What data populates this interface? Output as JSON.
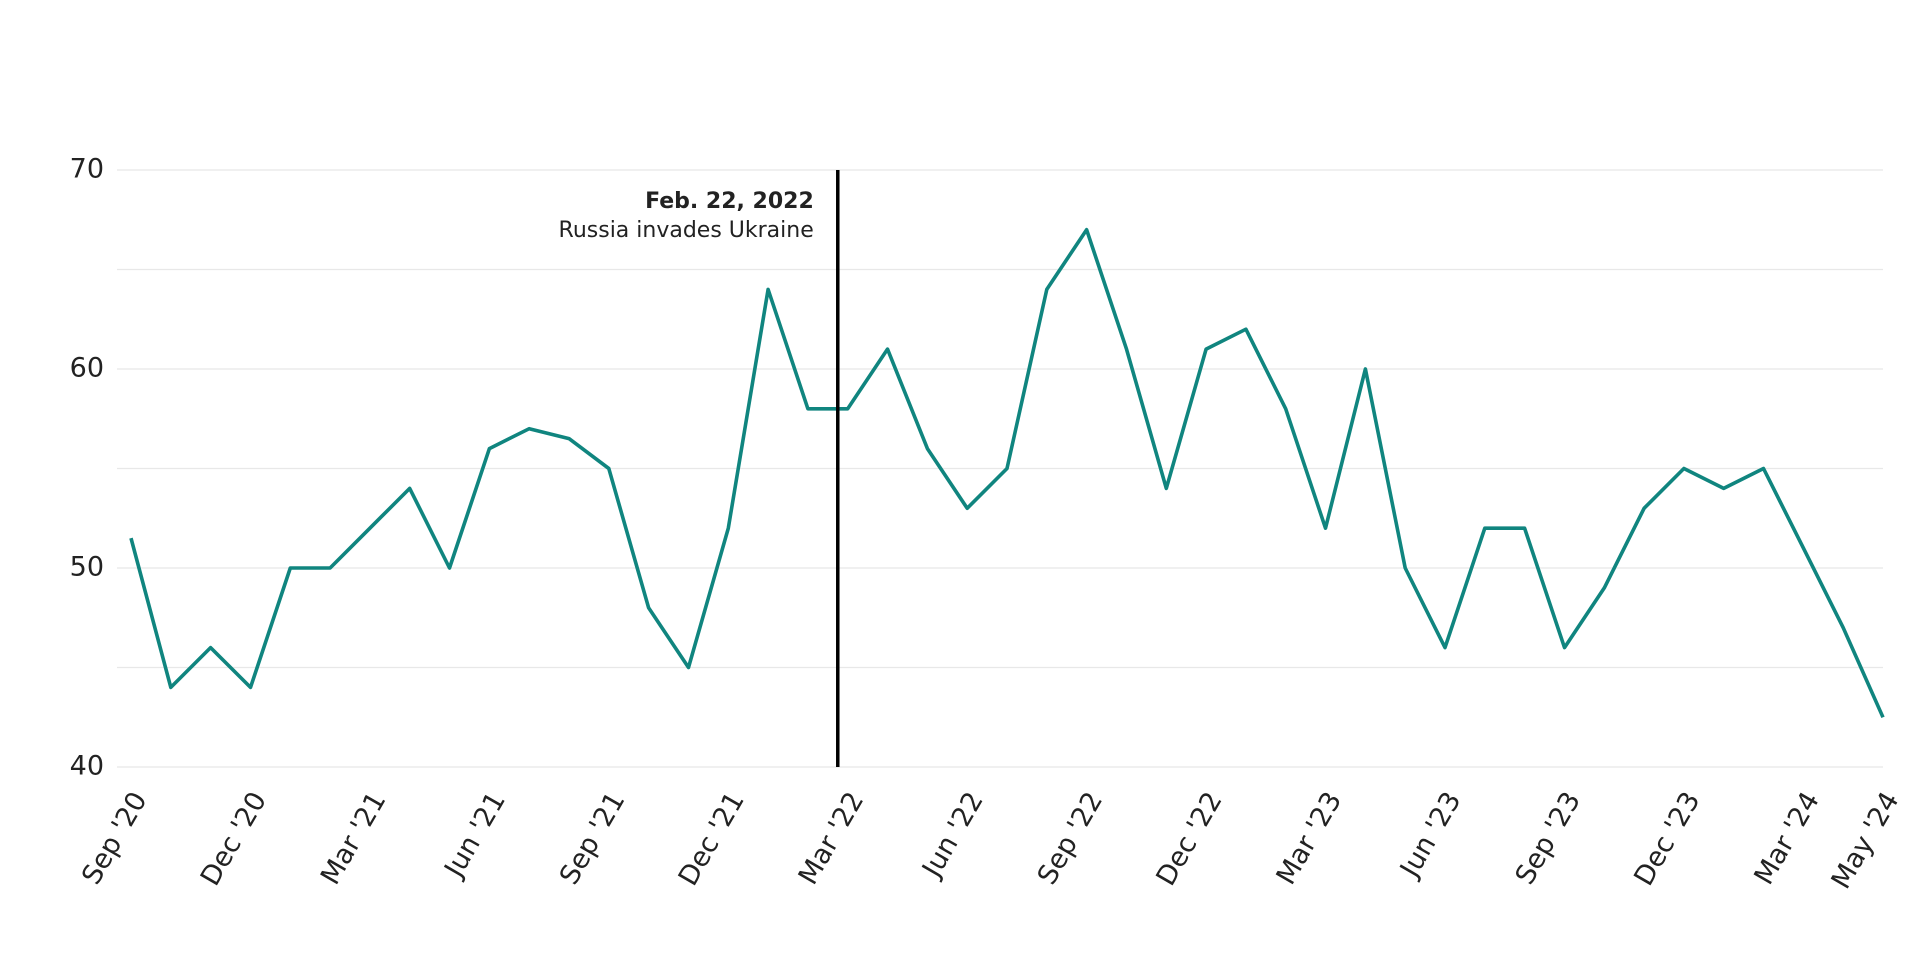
{
  "chart_data": {
    "type": "line",
    "x": [
      "2020-09",
      "2020-10",
      "2020-11",
      "2020-12",
      "2021-01",
      "2021-02",
      "2021-03",
      "2021-04",
      "2021-05",
      "2021-06",
      "2021-07",
      "2021-08",
      "2021-09",
      "2021-10",
      "2021-11",
      "2021-12",
      "2022-01",
      "2022-02",
      "2022-03",
      "2022-04",
      "2022-05",
      "2022-06",
      "2022-07",
      "2022-08",
      "2022-09",
      "2022-10",
      "2022-11",
      "2022-12",
      "2023-01",
      "2023-02",
      "2023-03",
      "2023-04",
      "2023-05",
      "2023-06",
      "2023-07",
      "2023-08",
      "2023-09",
      "2023-10",
      "2023-11",
      "2023-12",
      "2024-01",
      "2024-02",
      "2024-03",
      "2024-04",
      "2024-05"
    ],
    "series": [
      {
        "color": "#10857f",
        "values": [
          51.5,
          44,
          46,
          44,
          50,
          50,
          52,
          54,
          50,
          56,
          57,
          56.5,
          55,
          48,
          45,
          52,
          64,
          58,
          58,
          61,
          56,
          53,
          55,
          64,
          67,
          61,
          54,
          61,
          62,
          58,
          52,
          60,
          50,
          46,
          52,
          52,
          46,
          49,
          53,
          55,
          54,
          55,
          51,
          47,
          42.5
        ]
      }
    ],
    "xlim": [
      "2020-09",
      "2024-05"
    ],
    "xticks": [
      {
        "value": "2020-09",
        "label": "Sep '20"
      },
      {
        "value": "2020-12",
        "label": "Dec '20"
      },
      {
        "value": "2021-03",
        "label": "Mar '21"
      },
      {
        "value": "2021-06",
        "label": "Jun '21"
      },
      {
        "value": "2021-09",
        "label": "Sep '21"
      },
      {
        "value": "2021-12",
        "label": "Dec '21"
      },
      {
        "value": "2022-03",
        "label": "Mar '22"
      },
      {
        "value": "2022-06",
        "label": "Jun '22"
      },
      {
        "value": "2022-09",
        "label": "Sep '22"
      },
      {
        "value": "2022-12",
        "label": "Dec '22"
      },
      {
        "value": "2023-03",
        "label": "Mar '23"
      },
      {
        "value": "2023-06",
        "label": "Jun '23"
      },
      {
        "value": "2023-09",
        "label": "Sep '23"
      },
      {
        "value": "2023-12",
        "label": "Dec '23"
      },
      {
        "value": "2024-03",
        "label": "Mar '24"
      },
      {
        "value": "2024-05",
        "label": "May '24"
      }
    ],
    "ylim": [
      40,
      70
    ],
    "yticks": [
      40,
      50,
      60,
      70
    ],
    "grid_lines": [
      40,
      45,
      50,
      55,
      60,
      65,
      70
    ],
    "annotation": {
      "x": "2022-02-22",
      "title": "Feb. 22, 2022",
      "text": "Russia invades Ukraine"
    }
  }
}
